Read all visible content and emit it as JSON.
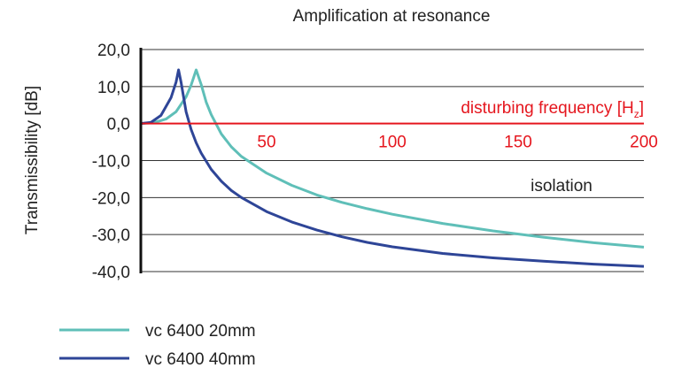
{
  "chart_data": {
    "type": "line",
    "title": "Amplification at resonance",
    "xlabel": "disturbing frequency [H",
    "xlabel_sub": "z",
    "xlabel_close": "]",
    "ylabel": "Transmissibility [dB]",
    "annotation": "isolation",
    "xlim": [
      0,
      200
    ],
    "ylim": [
      -40,
      20
    ],
    "x_ticks": [
      50,
      100,
      150,
      200
    ],
    "x_tick_labels": [
      "50",
      "100",
      "150",
      "200"
    ],
    "y_ticks": [
      20,
      10,
      0,
      -10,
      -20,
      -30,
      -40
    ],
    "y_tick_labels": [
      "20,0",
      "10,0",
      "0,0",
      "-10,0",
      "-20,0",
      "-30,0",
      "-40,0"
    ],
    "grid": true,
    "legend_position": "bottom-left",
    "colors": {
      "axis": "#111111",
      "zero_line": "#e5161e",
      "grid": "#333333"
    },
    "series": [
      {
        "name": "vc 6400 20mm",
        "color": "#5fbfb8",
        "x": [
          5,
          10,
          14,
          18,
          20,
          22,
          24,
          26,
          28,
          32,
          36,
          40,
          50,
          60,
          70,
          80,
          90,
          100,
          120,
          140,
          160,
          180,
          200
        ],
        "y": [
          0.2,
          1.2,
          3.2,
          7.2,
          10.4,
          14.5,
          10.5,
          5.8,
          2.4,
          -2.8,
          -6.3,
          -8.9,
          -13.4,
          -16.7,
          -19.3,
          -21.3,
          -23.0,
          -24.5,
          -27.0,
          -29.0,
          -30.7,
          -32.2,
          -33.4
        ]
      },
      {
        "name": "vc 6400 40mm",
        "color": "#2e4597",
        "x": [
          4,
          8,
          12,
          14,
          15,
          16,
          18,
          20,
          22,
          24,
          28,
          32,
          36,
          40,
          50,
          60,
          70,
          80,
          90,
          100,
          120,
          140,
          160,
          180,
          200
        ],
        "y": [
          0.3,
          2.2,
          7.0,
          11.2,
          14.5,
          11.2,
          3.2,
          -1.6,
          -5.2,
          -8.0,
          -12.4,
          -15.6,
          -18.1,
          -20.0,
          -23.8,
          -26.6,
          -28.8,
          -30.6,
          -32.1,
          -33.3,
          -35.1,
          -36.3,
          -37.2,
          -38.0,
          -38.6
        ]
      }
    ]
  }
}
